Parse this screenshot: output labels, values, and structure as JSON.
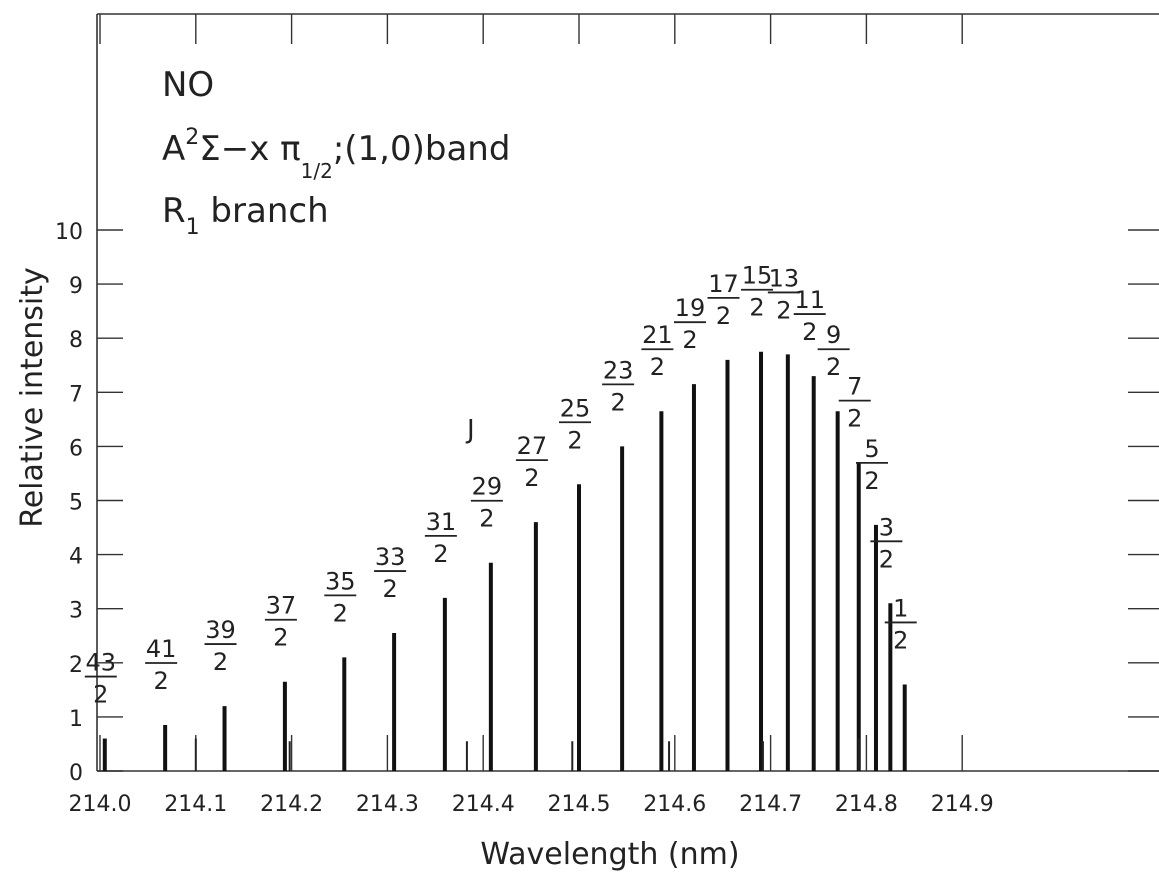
{
  "chart_data": {
    "type": "bar",
    "xlabel": "Wavelength (nm)",
    "ylabel": "Relative intensity",
    "xlim": [
      214.0,
      215.0
    ],
    "ylim": [
      0,
      10
    ],
    "x_ticks": [
      "214.0",
      "214.1",
      "214.2",
      "214.3",
      "214.4",
      "214.5",
      "214.6",
      "214.7",
      "214.8",
      "214.9"
    ],
    "y_ticks": [
      "0",
      "1",
      "2",
      "3",
      "4",
      "5",
      "6",
      "7",
      "8",
      "9",
      "10"
    ],
    "annotation": {
      "species": "NO",
      "band_prefix": "A",
      "band_sup": "2",
      "band_mid": "Σ−x π",
      "band_sub": "1/2",
      "band_suffix": ";(1,0)band",
      "branch_prefix": "R",
      "branch_sub": "1",
      "branch_suffix": " branch",
      "j_label": "J"
    },
    "bars": [
      {
        "x": 214.005,
        "value": 0.6,
        "num": "43",
        "den": "2"
      },
      {
        "x": 214.068,
        "value": 0.85,
        "num": "41",
        "den": "2"
      },
      {
        "x": 214.13,
        "value": 1.2,
        "num": "39",
        "den": "2"
      },
      {
        "x": 214.193,
        "value": 1.65,
        "num": "37",
        "den": "2"
      },
      {
        "x": 214.255,
        "value": 2.1,
        "num": "35",
        "den": "2"
      },
      {
        "x": 214.307,
        "value": 2.55,
        "num": "33",
        "den": "2"
      },
      {
        "x": 214.36,
        "value": 3.2,
        "num": "31",
        "den": "2"
      },
      {
        "x": 214.408,
        "value": 3.85,
        "num": "29",
        "den": "2"
      },
      {
        "x": 214.455,
        "value": 4.6,
        "num": "27",
        "den": "2"
      },
      {
        "x": 214.5,
        "value": 5.3,
        "num": "25",
        "den": "2"
      },
      {
        "x": 214.545,
        "value": 6.0,
        "num": "23",
        "den": "2"
      },
      {
        "x": 214.586,
        "value": 6.65,
        "num": "21",
        "den": "2"
      },
      {
        "x": 214.62,
        "value": 7.15,
        "num": "19",
        "den": "2"
      },
      {
        "x": 214.655,
        "value": 7.6,
        "num": "17",
        "den": "2"
      },
      {
        "x": 214.69,
        "value": 7.75,
        "num": "15",
        "den": "2"
      },
      {
        "x": 214.718,
        "value": 7.7,
        "num": "13",
        "den": "2"
      },
      {
        "x": 214.745,
        "value": 7.3,
        "num": "11",
        "den": "2"
      },
      {
        "x": 214.77,
        "value": 6.65,
        "num": "9",
        "den": "2"
      },
      {
        "x": 214.792,
        "value": 5.7,
        "num": "7",
        "den": "2"
      },
      {
        "x": 214.81,
        "value": 4.55,
        "num": "5",
        "den": "2"
      },
      {
        "x": 214.825,
        "value": 3.1,
        "num": "3",
        "den": "2"
      },
      {
        "x": 214.84,
        "value": 1.6,
        "num": "1",
        "den": "2"
      }
    ],
    "minor_lines": [
      {
        "x": 214.1,
        "value": 0.6
      },
      {
        "x": 214.198,
        "value": 0.55
      },
      {
        "x": 214.383,
        "value": 0.55
      },
      {
        "x": 214.493,
        "value": 0.55
      },
      {
        "x": 214.594,
        "value": 0.55
      },
      {
        "x": 214.692,
        "value": 0.55
      },
      {
        "x": 214.792,
        "value": 0.6
      }
    ],
    "grid": false
  }
}
